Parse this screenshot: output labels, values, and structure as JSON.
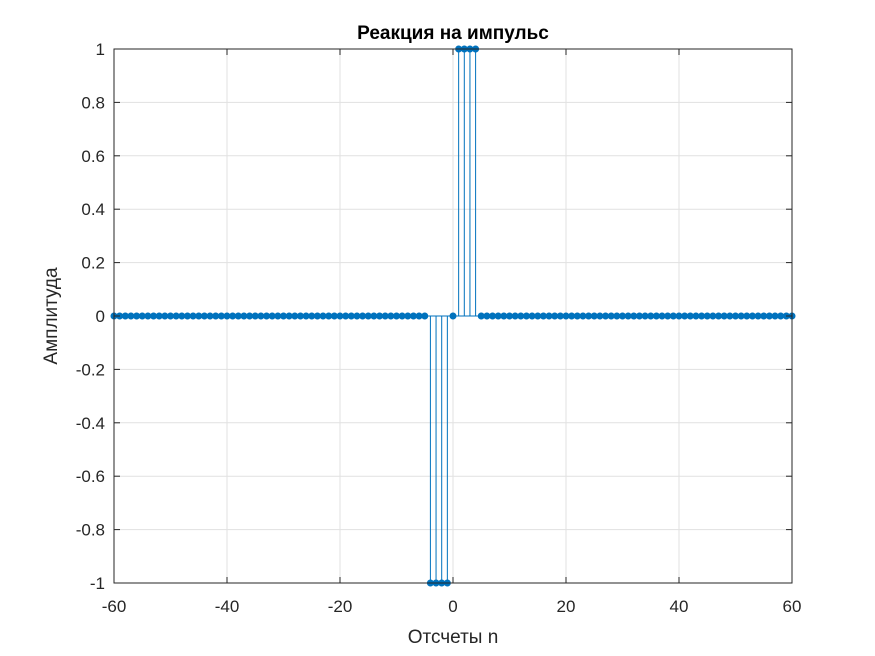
{
  "chart_data": {
    "type": "scatter",
    "plot_style": "stem",
    "title": "Реакция на импульс",
    "xlabel": "Отсчеты n",
    "ylabel": "Амплитуда",
    "xlim": [
      -60,
      60
    ],
    "ylim": [
      -1,
      1
    ],
    "xticks": [
      -60,
      -40,
      -20,
      0,
      20,
      40,
      60
    ],
    "xtick_labels": [
      "-60",
      "-40",
      "-20",
      "0",
      "20",
      "40",
      "60"
    ],
    "yticks": [
      -1,
      -0.8,
      -0.6,
      -0.4,
      -0.2,
      0,
      0.2,
      0.4,
      0.6,
      0.8,
      1
    ],
    "ytick_labels": [
      "-1",
      "-0.8",
      "-0.6",
      "-0.4",
      "-0.2",
      "0",
      "0.2",
      "0.4",
      "0.6",
      "0.8",
      "1"
    ],
    "grid": true,
    "colors": {
      "series": "#0072bd",
      "axis": "#262626",
      "grid": "#e1e1e1"
    },
    "series": [
      {
        "x": [
          -60,
          -59,
          -58,
          -57,
          -56,
          -55,
          -54,
          -53,
          -52,
          -51,
          -50,
          -49,
          -48,
          -47,
          -46,
          -45,
          -44,
          -43,
          -42,
          -41,
          -40,
          -39,
          -38,
          -37,
          -36,
          -35,
          -34,
          -33,
          -32,
          -31,
          -30,
          -29,
          -28,
          -27,
          -26,
          -25,
          -24,
          -23,
          -22,
          -21,
          -20,
          -19,
          -18,
          -17,
          -16,
          -15,
          -14,
          -13,
          -12,
          -11,
          -10,
          -9,
          -8,
          -7,
          -6,
          -5,
          -4,
          -3,
          -2,
          -1,
          0,
          1,
          2,
          3,
          4,
          5,
          6,
          7,
          8,
          9,
          10,
          11,
          12,
          13,
          14,
          15,
          16,
          17,
          18,
          19,
          20,
          21,
          22,
          23,
          24,
          25,
          26,
          27,
          28,
          29,
          30,
          31,
          32,
          33,
          34,
          35,
          36,
          37,
          38,
          39,
          40,
          41,
          42,
          43,
          44,
          45,
          46,
          47,
          48,
          49,
          50,
          51,
          52,
          53,
          54,
          55,
          56,
          57,
          58,
          59,
          60
        ],
        "y": [
          0,
          0,
          0,
          0,
          0,
          0,
          0,
          0,
          0,
          0,
          0,
          0,
          0,
          0,
          0,
          0,
          0,
          0,
          0,
          0,
          0,
          0,
          0,
          0,
          0,
          0,
          0,
          0,
          0,
          0,
          0,
          0,
          0,
          0,
          0,
          0,
          0,
          0,
          0,
          0,
          0,
          0,
          0,
          0,
          0,
          0,
          0,
          0,
          0,
          0,
          0,
          0,
          0,
          0,
          0,
          0,
          -1,
          -1,
          -1,
          -1,
          0,
          1,
          1,
          1,
          1,
          0,
          0,
          0,
          0,
          0,
          0,
          0,
          0,
          0,
          0,
          0,
          0,
          0,
          0,
          0,
          0,
          0,
          0,
          0,
          0,
          0,
          0,
          0,
          0,
          0,
          0,
          0,
          0,
          0,
          0,
          0,
          0,
          0,
          0,
          0,
          0,
          0,
          0,
          0,
          0,
          0,
          0,
          0,
          0,
          0,
          0,
          0,
          0,
          0,
          0,
          0,
          0,
          0,
          0,
          0,
          0
        ]
      }
    ]
  }
}
